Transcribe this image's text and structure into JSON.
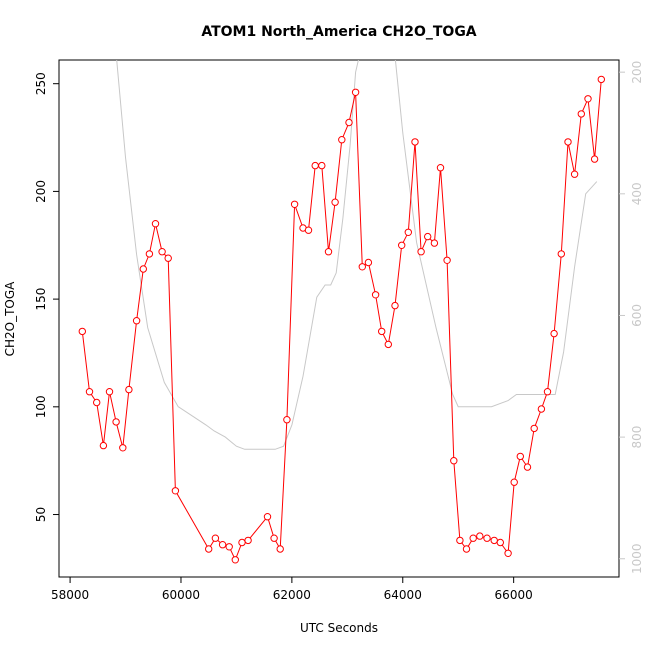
{
  "chart_data": {
    "type": "line",
    "title": "ATOM1 North_America CH2O_TOGA",
    "xlabel": "UTC Seconds",
    "ylabel": "CH2O_TOGA",
    "xlim": [
      57800,
      67900
    ],
    "ylim": [
      21,
      261
    ],
    "x_ticks": [
      58000,
      60000,
      62000,
      64000,
      66000
    ],
    "y_ticks": [
      50,
      100,
      150,
      200,
      250
    ],
    "secondary_axis": {
      "side": "right",
      "reversed": true,
      "lim": [
        180,
        1030
      ],
      "ticks": [
        200,
        400,
        600,
        800,
        1000
      ],
      "color": "#c8c8c8"
    },
    "grid": false,
    "series": [
      {
        "color": "#ff0000",
        "marker": "open-circle",
        "axis": "left",
        "x": [
          58220,
          58350,
          58480,
          58600,
          58710,
          58830,
          58950,
          59060,
          59200,
          59320,
          59430,
          59540,
          59660,
          59770,
          59900,
          60500,
          60620,
          60750,
          60870,
          60980,
          61100,
          61210,
          61560,
          61680,
          61790,
          61910,
          62050,
          62200,
          62300,
          62420,
          62540,
          62660,
          62780,
          62900,
          63030,
          63150,
          63270,
          63380,
          63510,
          63620,
          63740,
          63860,
          63980,
          64100,
          64220,
          64330,
          64450,
          64570,
          64680,
          64800,
          64920,
          65030,
          65150,
          65270,
          65390,
          65520,
          65650,
          65760,
          65900,
          66010,
          66120,
          66250,
          66370,
          66500,
          66610,
          66730,
          66860,
          66980,
          67100,
          67220,
          67340,
          67460,
          67580
        ],
        "y": [
          135,
          107,
          102,
          82,
          107,
          93,
          81,
          108,
          140,
          164,
          171,
          185,
          172,
          169,
          61,
          34,
          39,
          36,
          35,
          29,
          37,
          38,
          49,
          39,
          34,
          94,
          194,
          183,
          182,
          212,
          212,
          172,
          195,
          224,
          232,
          246,
          165,
          167,
          152,
          135,
          129,
          147,
          175,
          181,
          223,
          172,
          179,
          176,
          211,
          168,
          75,
          38,
          34,
          39,
          40,
          39,
          38,
          37,
          32,
          65,
          77,
          72,
          90,
          99,
          107,
          134,
          171,
          223,
          208,
          236,
          243,
          215,
          252
        ]
      },
      {
        "color": "#c8c8c8",
        "axis": "right",
        "x": [
          58820,
          59000,
          59200,
          59400,
          59700,
          59950,
          60200,
          60450,
          60600,
          60800,
          61000,
          61150,
          61400,
          61700,
          61850,
          62000,
          62200,
          62450,
          62600,
          62700,
          62800,
          62920,
          63050,
          63150,
          63250,
          63350,
          63550,
          63800,
          64000,
          64250,
          64600,
          64900,
          65000,
          65200,
          65600,
          65900,
          66050,
          66300,
          66550,
          66750,
          66900,
          67100,
          67300,
          67500
        ],
        "y": [
          160,
          340,
          500,
          620,
          710,
          750,
          765,
          780,
          790,
          800,
          815,
          820,
          820,
          820,
          815,
          780,
          700,
          570,
          550,
          550,
          530,
          440,
          320,
          200,
          160,
          50,
          60,
          120,
          300,
          480,
          620,
          730,
          750,
          750,
          750,
          740,
          730,
          730,
          730,
          730,
          660,
          520,
          400,
          380
        ]
      }
    ]
  }
}
